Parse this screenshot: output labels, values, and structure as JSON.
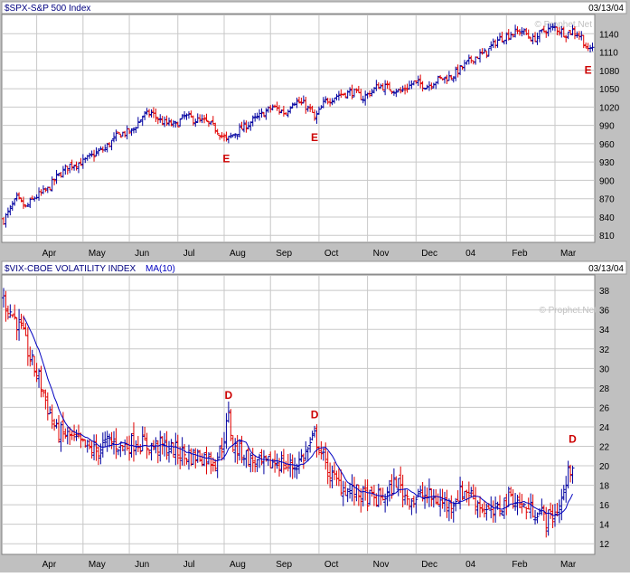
{
  "window": {
    "background": "#c0c0c0"
  },
  "colors": {
    "up": "#0000a0",
    "down": "#e00000",
    "ma": "#0000c0",
    "grid": "#c8c8c8",
    "title": "#000080",
    "marker": "#cc0000",
    "watermark": "#c0c0c0"
  },
  "top_panel": {
    "title": "$SPX-S&P 500 Index",
    "date": "03/13/04",
    "watermark": "© Prophet.Net"
  },
  "bottom_panel": {
    "title": "$VIX-CBOE VOLATILITY INDEX",
    "indicator": "MA(10)",
    "date": "03/13/04",
    "watermark": "© Prophet.Net"
  },
  "chart_data": [
    {
      "type": "ohlc",
      "title": "$SPX-S&P 500 Index",
      "x_tick_labels": [
        "Apr",
        "May",
        "Jun",
        "Jul",
        "Aug",
        "Sep",
        "Oct",
        "Nov",
        "Dec",
        "04",
        "Feb",
        "Mar"
      ],
      "ylim": [
        800,
        1170
      ],
      "y_ticks": [
        810,
        840,
        870,
        900,
        930,
        960,
        990,
        1020,
        1050,
        1080,
        1110,
        1140
      ],
      "grid": true,
      "anchors": [
        [
          0,
          835
        ],
        [
          6,
          870
        ],
        [
          10,
          855
        ],
        [
          14,
          872
        ],
        [
          20,
          885
        ],
        [
          24,
          905
        ],
        [
          30,
          925
        ],
        [
          36,
          930
        ],
        [
          42,
          945
        ],
        [
          46,
          952
        ],
        [
          52,
          975
        ],
        [
          58,
          980
        ],
        [
          63,
          1005
        ],
        [
          67,
          1010
        ],
        [
          72,
          995
        ],
        [
          78,
          990
        ],
        [
          82,
          1005
        ],
        [
          86,
          1000
        ],
        [
          92,
          995
        ],
        [
          96,
          985
        ],
        [
          101,
          965
        ],
        [
          104,
          975
        ],
        [
          110,
          990
        ],
        [
          116,
          1005
        ],
        [
          122,
          1020
        ],
        [
          128,
          1010
        ],
        [
          131,
          1030
        ],
        [
          136,
          1025
        ],
        [
          140,
          1010
        ],
        [
          141,
          1000
        ],
        [
          146,
          1030
        ],
        [
          152,
          1040
        ],
        [
          158,
          1045
        ],
        [
          163,
          1035
        ],
        [
          170,
          1055
        ],
        [
          176,
          1050
        ],
        [
          180,
          1045
        ],
        [
          186,
          1060
        ],
        [
          192,
          1055
        ],
        [
          197,
          1065
        ],
        [
          203,
          1070
        ],
        [
          208,
          1085
        ],
        [
          213,
          1100
        ],
        [
          219,
          1110
        ],
        [
          224,
          1130
        ],
        [
          230,
          1140
        ],
        [
          235,
          1145
        ],
        [
          240,
          1130
        ],
        [
          245,
          1145
        ],
        [
          250,
          1150
        ],
        [
          255,
          1140
        ],
        [
          258,
          1145
        ],
        [
          262,
          1135
        ],
        [
          265,
          1110
        ],
        [
          267,
          1120
        ]
      ],
      "annotations": [
        {
          "label": "E",
          "x": 101
        },
        {
          "label": "E",
          "x": 141
        },
        {
          "label": "E",
          "x": 265
        }
      ]
    },
    {
      "type": "ohlc",
      "title": "$VIX-CBOE VOLATILITY INDEX",
      "series": [
        {
          "name": "MA(10)",
          "type": "line"
        }
      ],
      "x_tick_labels": [
        "Apr",
        "May",
        "Jun",
        "Jul",
        "Aug",
        "Sep",
        "Oct",
        "Nov",
        "Dec",
        "04",
        "Feb",
        "Mar"
      ],
      "ylim": [
        11,
        39.5
      ],
      "y_ticks": [
        12,
        14,
        16,
        18,
        20,
        22,
        24,
        26,
        28,
        30,
        32,
        34,
        36,
        38
      ],
      "grid": true,
      "anchors": [
        [
          0,
          37
        ],
        [
          4,
          35.5
        ],
        [
          8,
          34
        ],
        [
          12,
          31
        ],
        [
          16,
          29
        ],
        [
          20,
          26
        ],
        [
          24,
          23.5
        ],
        [
          30,
          23
        ],
        [
          36,
          22
        ],
        [
          42,
          21.5
        ],
        [
          48,
          22.5
        ],
        [
          54,
          22
        ],
        [
          60,
          22.5
        ],
        [
          66,
          22
        ],
        [
          72,
          22
        ],
        [
          78,
          21.5
        ],
        [
          84,
          21
        ],
        [
          90,
          21
        ],
        [
          96,
          20.5
        ],
        [
          99,
          22
        ],
        [
          102,
          25
        ],
        [
          104,
          22
        ],
        [
          108,
          21.5
        ],
        [
          112,
          20.5
        ],
        [
          118,
          20
        ],
        [
          124,
          20.5
        ],
        [
          128,
          20
        ],
        [
          132,
          20
        ],
        [
          136,
          21
        ],
        [
          139,
          22
        ],
        [
          141,
          23
        ],
        [
          143,
          22
        ],
        [
          146,
          20
        ],
        [
          150,
          18.5
        ],
        [
          156,
          17.5
        ],
        [
          162,
          17
        ],
        [
          168,
          16.5
        ],
        [
          174,
          17
        ],
        [
          178,
          18.5
        ],
        [
          182,
          17
        ],
        [
          186,
          16.5
        ],
        [
          190,
          17
        ],
        [
          196,
          16.5
        ],
        [
          202,
          16
        ],
        [
          206,
          17
        ],
        [
          210,
          17.5
        ],
        [
          214,
          16.5
        ],
        [
          218,
          15.5
        ],
        [
          222,
          15
        ],
        [
          226,
          16
        ],
        [
          230,
          17
        ],
        [
          234,
          16
        ],
        [
          238,
          15.5
        ],
        [
          242,
          15.5
        ],
        [
          246,
          14.5
        ],
        [
          250,
          15
        ],
        [
          253,
          16.5
        ],
        [
          256,
          19
        ],
        [
          258,
          20.5
        ]
      ],
      "annotations": [
        {
          "label": "D",
          "x": 102
        },
        {
          "label": "D",
          "x": 141
        },
        {
          "label": "D",
          "x": 258
        }
      ]
    }
  ]
}
